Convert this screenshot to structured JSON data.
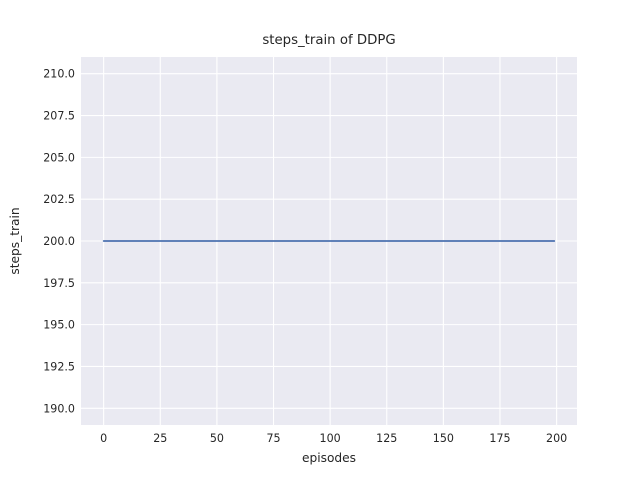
{
  "chart_data": {
    "type": "line",
    "title": "steps_train of DDPG",
    "xlabel": "episodes",
    "ylabel": "steps_train",
    "x_ticks": [
      0,
      25,
      50,
      75,
      100,
      125,
      150,
      175,
      200
    ],
    "y_ticks": [
      190.0,
      192.5,
      195.0,
      197.5,
      200.0,
      202.5,
      205.0,
      207.5,
      210.0
    ],
    "xlim": [
      -10,
      209
    ],
    "ylim": [
      189,
      211
    ],
    "grid": true,
    "legend_visible": false,
    "series": [
      {
        "name": "steps_train",
        "color": "#4c72b0",
        "x": [
          0,
          199
        ],
        "values": [
          200,
          200
        ],
        "shape": "constant horizontal line at 200 from episode 0 to 199"
      }
    ]
  },
  "colors": {
    "line": "#4c72b0",
    "plot_background": "#eaeaf2",
    "grid": "#ffffff",
    "text": "#262626",
    "figure_background": "#ffffff"
  }
}
